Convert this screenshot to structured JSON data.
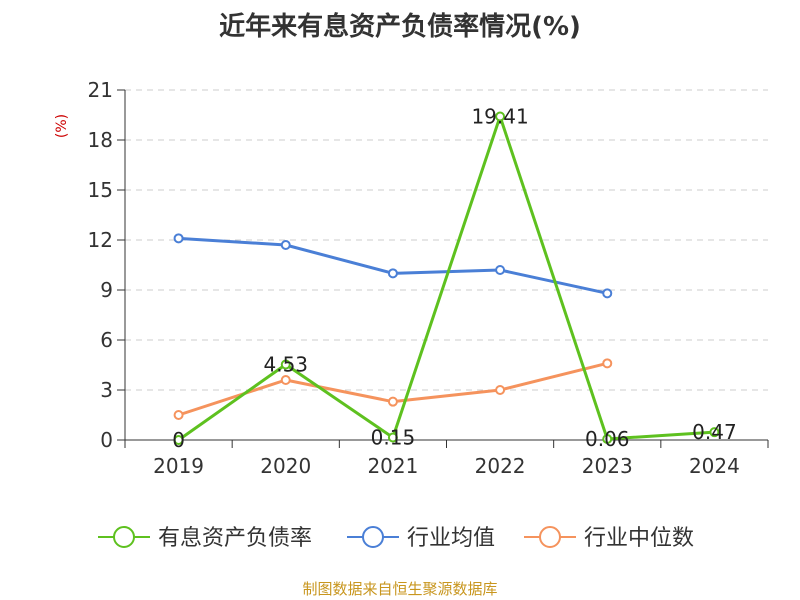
{
  "chart_data": {
    "type": "line",
    "title": "近年来有息资产负债率情况(%)",
    "ylabel": "(%)",
    "categories": [
      "2019",
      "2020",
      "2021",
      "2022",
      "2023",
      "2024"
    ],
    "ylim": [
      0,
      21
    ],
    "yticks": [
      0,
      3,
      6,
      9,
      12,
      15,
      18,
      21
    ],
    "grid": true,
    "legend_position": "bottom",
    "series": [
      {
        "name": "有息资产负债率",
        "color": "#5ec11f",
        "values": [
          0,
          4.53,
          0.15,
          19.41,
          0.06,
          0.47
        ],
        "labels": [
          "0",
          "4.53",
          "0.15",
          "19.41",
          "0.06",
          "0.47"
        ]
      },
      {
        "name": "行业均值",
        "color": "#4a7fd6",
        "values": [
          12.1,
          11.7,
          10.0,
          10.2,
          8.8,
          null
        ]
      },
      {
        "name": "行业中位数",
        "color": "#f5935d",
        "values": [
          1.5,
          3.6,
          2.3,
          3.0,
          4.6,
          null
        ]
      }
    ],
    "source": "制图数据来自恒生聚源数据库"
  }
}
